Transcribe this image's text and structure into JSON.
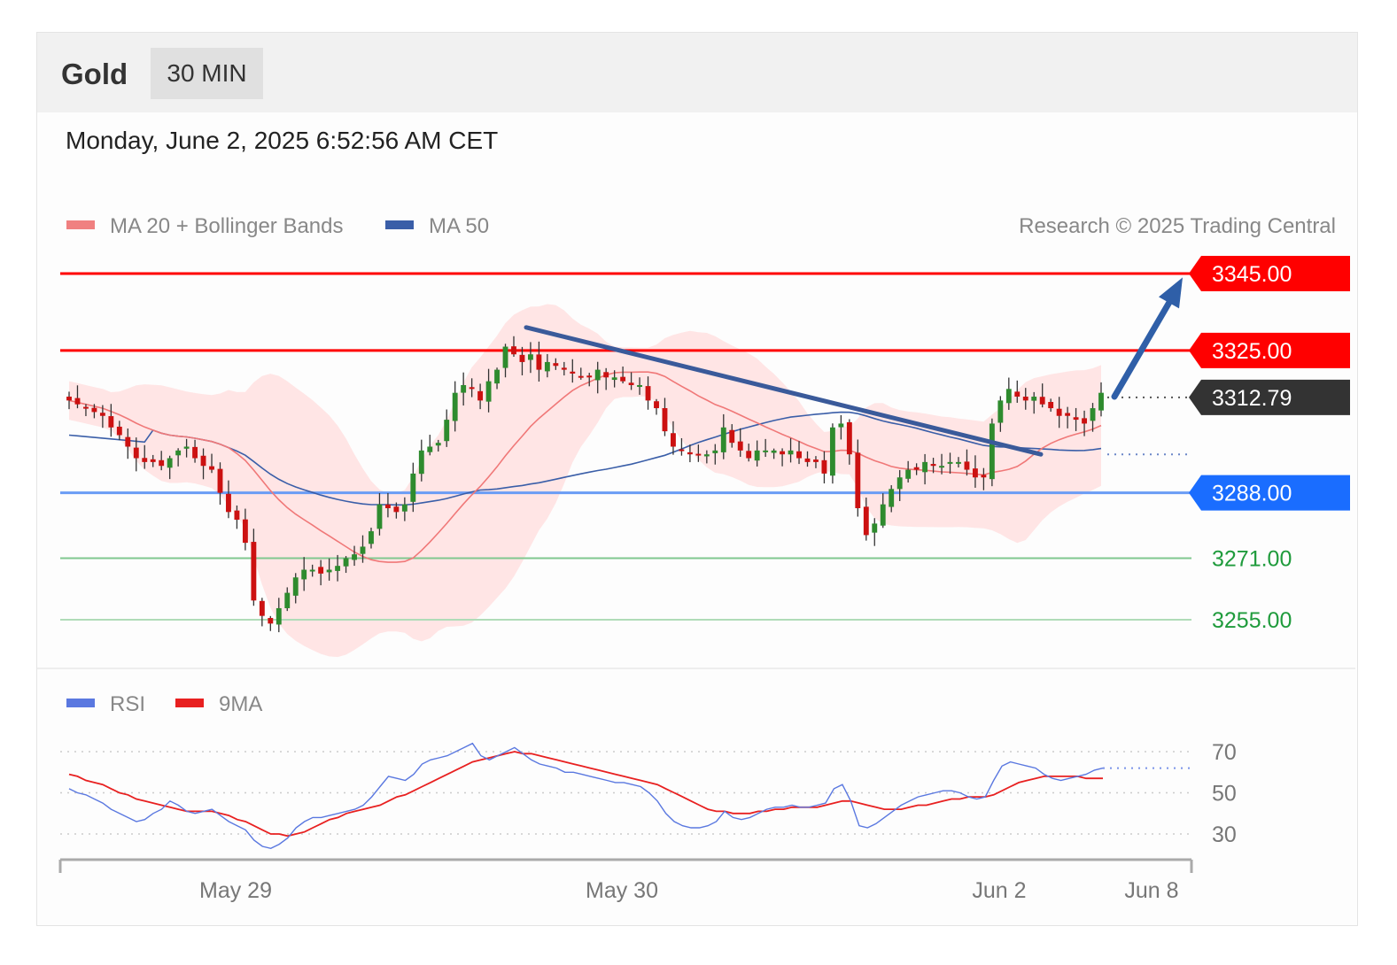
{
  "header": {
    "asset": "Gold",
    "timeframe": "30 MIN"
  },
  "datetime": "Monday, June 2, 2025 6:52:56 AM CET",
  "legend": {
    "ma20": "MA 20 + Bollinger Bands",
    "ma50": "MA 50",
    "credit": "Research © 2025 Trading Central"
  },
  "rsi_legend": {
    "rsi": "RSI",
    "ma9": "9MA"
  },
  "colors": {
    "resistance": "#ff0000",
    "support_strong": "#1a6dff",
    "support_weak": "#1f9b3c",
    "last": "#333333",
    "bullish": "#2e8b2e",
    "bearish": "#cc1111",
    "bollinger": "#ffdede",
    "ma20": "#f07878",
    "ma50": "#3a5ea8",
    "rsi": "#5a78e0",
    "rsi9": "#e82020"
  },
  "chart_data": {
    "type": "candlestick",
    "title": "Gold 30 MIN",
    "ylim": [
      3232,
      3358
    ],
    "x_ticks": [
      "May 29",
      "May 30",
      "Jun 2",
      "Jun 8"
    ],
    "levels": [
      {
        "value": 3345.0,
        "label": "3345.00",
        "kind": "resistance"
      },
      {
        "value": 3325.0,
        "label": "3325.00",
        "kind": "resistance"
      },
      {
        "value": 3312.79,
        "label": "3312.79",
        "kind": "last"
      },
      {
        "value": 3288.0,
        "label": "3288.00",
        "kind": "support_strong"
      },
      {
        "value": 3271.0,
        "label": "3271.00",
        "kind": "support_weak"
      },
      {
        "value": 3255.0,
        "label": "3255.00",
        "kind": "support_weak"
      }
    ],
    "ma50_last": 3298,
    "trendline": {
      "from": {
        "bar": 0,
        "price": 3331
      },
      "to": {
        "bar": 1,
        "price": 3298
      }
    },
    "target_arrow": {
      "from": 3313,
      "to": 3344
    },
    "closes": [
      3312,
      3311,
      3310,
      3309,
      3308,
      3305,
      3303,
      3300,
      3297,
      3296,
      3296,
      3295,
      3297,
      3299,
      3300,
      3297,
      3295,
      3294,
      3288,
      3283,
      3281,
      3275,
      3260,
      3256,
      3254,
      3258,
      3262,
      3266,
      3268,
      3268,
      3267,
      3268,
      3269,
      3271,
      3272,
      3274,
      3278,
      3285,
      3284,
      3283,
      3285,
      3293,
      3299,
      3300,
      3301,
      3307,
      3314,
      3316,
      3315,
      3312,
      3317,
      3320,
      3326,
      3324,
      3322,
      3324,
      3320,
      3322,
      3321,
      3320,
      3319,
      3318,
      3318,
      3320,
      3318,
      3318,
      3317,
      3316,
      3316,
      3312,
      3310,
      3304,
      3300,
      3299,
      3298,
      3298,
      3298,
      3299,
      3305,
      3301,
      3299,
      3297,
      3299,
      3299,
      3299,
      3298,
      3299,
      3297,
      3296,
      3296,
      3293,
      3305,
      3306,
      3298,
      3284,
      3277,
      3280,
      3285,
      3289,
      3292,
      3294,
      3294,
      3296,
      3295,
      3295,
      3296,
      3296,
      3294,
      3292,
      3292,
      3306,
      3312,
      3315,
      3313,
      3312,
      3313,
      3311,
      3310,
      3308,
      3308,
      3307,
      3306,
      3310,
      3314
    ],
    "rsi_series": [
      {
        "name": "RSI",
        "values": [
          52,
          50,
          49,
          47,
          45,
          42,
          40,
          38,
          36,
          37,
          40,
          42,
          46,
          44,
          41,
          40,
          41,
          42,
          39,
          36,
          34,
          32,
          27,
          24,
          23,
          25,
          28,
          33,
          36,
          38,
          38,
          39,
          40,
          41,
          42,
          44,
          48,
          53,
          58,
          57,
          56,
          59,
          64,
          66,
          67,
          68,
          70,
          72,
          74,
          68,
          66,
          68,
          70,
          72,
          69,
          66,
          64,
          63,
          62,
          60,
          60,
          59,
          58,
          57,
          56,
          55,
          55,
          54,
          53,
          50,
          46,
          40,
          36,
          34,
          33,
          33,
          34,
          36,
          41,
          38,
          37,
          38,
          40,
          42,
          43,
          43,
          44,
          43,
          43,
          44,
          45,
          52,
          54,
          46,
          34,
          33,
          35,
          38,
          41,
          44,
          46,
          48,
          49,
          50,
          51,
          51,
          50,
          48,
          47,
          48,
          56,
          63,
          65,
          64,
          63,
          62,
          59,
          57,
          56,
          57,
          58,
          59,
          61,
          62
        ]
      },
      {
        "name": "9MA",
        "values": [
          59,
          58,
          56,
          55,
          54,
          52,
          50,
          49,
          47,
          46,
          45,
          44,
          43,
          42,
          41,
          41,
          41,
          41,
          40,
          39,
          37,
          36,
          34,
          32,
          30,
          30,
          29,
          30,
          31,
          33,
          35,
          37,
          38,
          40,
          41,
          42,
          43,
          44,
          46,
          48,
          49,
          51,
          53,
          55,
          57,
          59,
          61,
          63,
          65,
          66,
          67,
          68,
          69,
          70,
          69,
          69,
          68,
          67,
          66,
          65,
          64,
          63,
          62,
          61,
          60,
          59,
          58,
          57,
          56,
          55,
          54,
          52,
          50,
          48,
          46,
          44,
          42,
          41,
          41,
          40,
          40,
          40,
          41,
          41,
          42,
          42,
          43,
          43,
          43,
          43,
          44,
          45,
          46,
          46,
          45,
          44,
          43,
          42,
          42,
          42,
          43,
          44,
          44,
          45,
          46,
          47,
          47,
          48,
          48,
          48,
          49,
          51,
          53,
          55,
          56,
          57,
          58,
          58,
          58,
          58,
          58,
          57,
          57,
          57
        ]
      }
    ],
    "rsi_ticks": [
      70,
      50,
      30
    ]
  }
}
